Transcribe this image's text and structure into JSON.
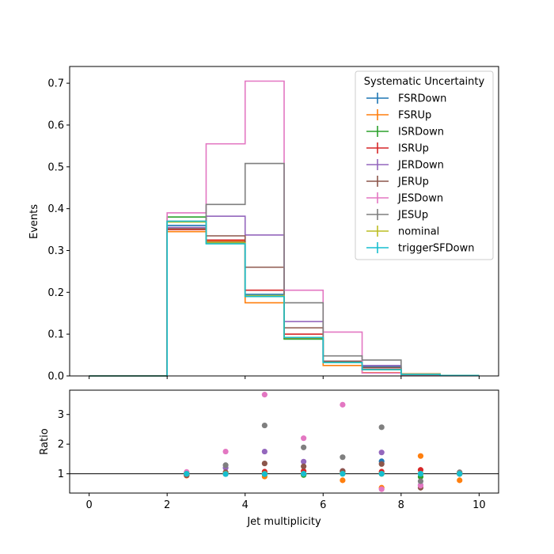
{
  "chart_data": [
    {
      "type": "step",
      "panel": "main",
      "xlabel": "",
      "ylabel": "Events",
      "xlim": [
        -0.5,
        10.5
      ],
      "ylim": [
        0,
        0.74
      ],
      "yticks": [
        0.0,
        0.1,
        0.2,
        0.3,
        0.4,
        0.5,
        0.6,
        0.7
      ],
      "ytick_labels": [
        "0.0",
        "0.1",
        "0.2",
        "0.3",
        "0.4",
        "0.5",
        "0.6",
        "0.7"
      ],
      "bin_edges": [
        0,
        1,
        2,
        3,
        4,
        5,
        6,
        7,
        8,
        9,
        10
      ],
      "legend": {
        "title": "Systematic Uncertainty",
        "placement": "upper right"
      },
      "series": [
        {
          "name": "FSRDown",
          "color": "#1f77b4",
          "values": [
            0,
            0,
            0.36,
            0.32,
            0.195,
            0.09,
            0.035,
            0.022,
            0.004,
            0.001
          ]
        },
        {
          "name": "FSRUp",
          "color": "#ff7f0e",
          "values": [
            0,
            0,
            0.345,
            0.322,
            0.175,
            0.09,
            0.025,
            0.008,
            0.005,
            0.001
          ]
        },
        {
          "name": "ISRDown",
          "color": "#2ca02c",
          "values": [
            0,
            0,
            0.38,
            0.318,
            0.19,
            0.088,
            0.033,
            0.015,
            0.003,
            0.001
          ]
        },
        {
          "name": "ISRUp",
          "color": "#d62728",
          "values": [
            0,
            0,
            0.35,
            0.325,
            0.205,
            0.1,
            0.035,
            0.016,
            0.004,
            0.001
          ]
        },
        {
          "name": "JERDown",
          "color": "#9467bd",
          "values": [
            0,
            0,
            0.355,
            0.382,
            0.337,
            0.13,
            0.035,
            0.025,
            0.002,
            0.001
          ]
        },
        {
          "name": "JERUp",
          "color": "#8c564b",
          "values": [
            0,
            0,
            0.352,
            0.335,
            0.26,
            0.115,
            0.035,
            0.02,
            0.002,
            0.001
          ]
        },
        {
          "name": "JESDown",
          "color": "#e377c2",
          "values": [
            0,
            0,
            0.39,
            0.555,
            0.705,
            0.205,
            0.105,
            0.007,
            0.001,
            0.0005
          ]
        },
        {
          "name": "JESUp",
          "color": "#7f7f7f",
          "values": [
            0,
            0,
            0.37,
            0.41,
            0.508,
            0.175,
            0.048,
            0.038,
            0.003,
            0.001
          ]
        },
        {
          "name": "nominal",
          "color": "#bcbd22",
          "values": [
            0,
            0,
            0.368,
            0.318,
            0.192,
            0.092,
            0.032,
            0.015,
            0.004,
            0.001
          ]
        },
        {
          "name": "triggerSFDown",
          "color": "#17becf",
          "values": [
            0,
            0,
            0.37,
            0.316,
            0.19,
            0.092,
            0.032,
            0.015,
            0.004,
            0.001
          ]
        }
      ]
    },
    {
      "type": "scatter",
      "panel": "ratio",
      "xlabel": "Jet multiplicity",
      "ylabel": "Ratio",
      "xlim": [
        -0.5,
        10.5
      ],
      "ylim": [
        0.35,
        3.82
      ],
      "xticks": [
        0,
        2,
        4,
        6,
        8,
        10
      ],
      "xtick_labels": [
        "0",
        "2",
        "4",
        "6",
        "8",
        "10"
      ],
      "yticks": [
        1,
        2,
        3
      ],
      "ytick_labels": [
        "1",
        "2",
        "3"
      ],
      "reference_line": 1,
      "x": [
        2.5,
        3.5,
        4.5,
        5.5,
        6.5,
        7.5,
        8.5,
        9.5
      ],
      "series": [
        {
          "name": "FSRDown",
          "color": "#1f77b4",
          "values": [
            0.98,
            1.0,
            1.02,
            0.98,
            1.09,
            1.42,
            1.0,
            1.0
          ]
        },
        {
          "name": "FSRUp",
          "color": "#ff7f0e",
          "values": [
            0.94,
            1.01,
            0.91,
            0.98,
            0.78,
            0.53,
            1.6,
            0.78
          ]
        },
        {
          "name": "ISRDown",
          "color": "#2ca02c",
          "values": [
            1.03,
            1.0,
            0.99,
            0.96,
            1.03,
            1.0,
            0.9,
            1.0
          ]
        },
        {
          "name": "ISRUp",
          "color": "#d62728",
          "values": [
            0.95,
            1.02,
            1.07,
            1.09,
            1.09,
            1.07,
            1.13,
            1.0
          ]
        },
        {
          "name": "JERDown",
          "color": "#9467bd",
          "values": [
            0.96,
            1.2,
            1.75,
            1.41,
            1.09,
            1.72,
            0.62,
            1.0
          ]
        },
        {
          "name": "JERUp",
          "color": "#8c564b",
          "values": [
            0.96,
            1.05,
            1.35,
            1.25,
            1.09,
            1.33,
            0.53,
            1.0
          ]
        },
        {
          "name": "JESDown",
          "color": "#e377c2",
          "values": [
            1.06,
            1.75,
            3.67,
            2.2,
            3.33,
            0.48,
            0.6,
            1.03
          ]
        },
        {
          "name": "JESUp",
          "color": "#7f7f7f",
          "values": [
            1.0,
            1.29,
            2.63,
            1.89,
            1.56,
            2.57,
            0.75,
            1.05
          ]
        },
        {
          "name": "nominal",
          "color": "#bcbd22",
          "values": [
            1.0,
            1.0,
            1.0,
            1.0,
            1.0,
            1.0,
            1.0,
            1.0
          ]
        },
        {
          "name": "triggerSFDown",
          "color": "#17becf",
          "values": [
            1.0,
            0.99,
            0.99,
            1.0,
            1.0,
            1.0,
            1.0,
            1.0
          ]
        }
      ]
    }
  ]
}
